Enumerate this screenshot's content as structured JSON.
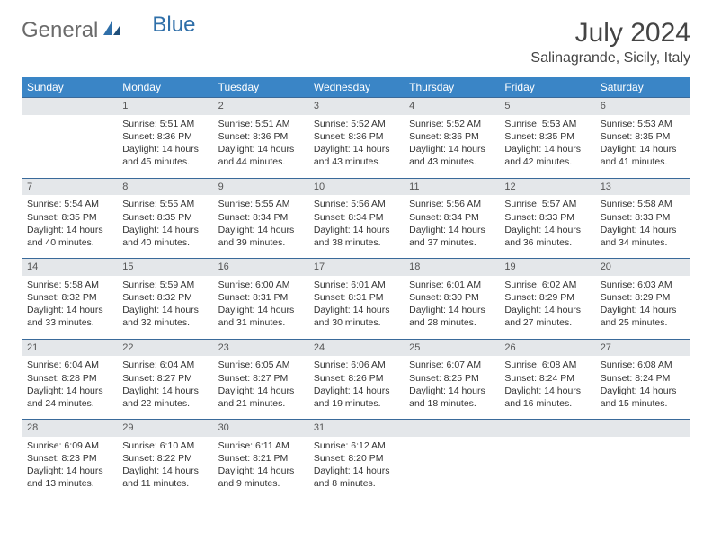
{
  "logo": {
    "general": "General",
    "blue": "Blue"
  },
  "title": "July 2024",
  "location": "Salinagrande, Sicily, Italy",
  "colors": {
    "header_bg": "#3a85c6",
    "header_text": "#ffffff",
    "daynum_bg": "#e4e7ea",
    "row_border": "#3a6a9a",
    "logo_blue": "#2f6fa9",
    "logo_gray": "#6b6b6b"
  },
  "weekdays": [
    "Sunday",
    "Monday",
    "Tuesday",
    "Wednesday",
    "Thursday",
    "Friday",
    "Saturday"
  ],
  "weeks": [
    [
      {
        "day": "",
        "sunrise": "",
        "sunset": "",
        "daylight": ""
      },
      {
        "day": "1",
        "sunrise": "Sunrise: 5:51 AM",
        "sunset": "Sunset: 8:36 PM",
        "daylight": "Daylight: 14 hours and 45 minutes."
      },
      {
        "day": "2",
        "sunrise": "Sunrise: 5:51 AM",
        "sunset": "Sunset: 8:36 PM",
        "daylight": "Daylight: 14 hours and 44 minutes."
      },
      {
        "day": "3",
        "sunrise": "Sunrise: 5:52 AM",
        "sunset": "Sunset: 8:36 PM",
        "daylight": "Daylight: 14 hours and 43 minutes."
      },
      {
        "day": "4",
        "sunrise": "Sunrise: 5:52 AM",
        "sunset": "Sunset: 8:36 PM",
        "daylight": "Daylight: 14 hours and 43 minutes."
      },
      {
        "day": "5",
        "sunrise": "Sunrise: 5:53 AM",
        "sunset": "Sunset: 8:35 PM",
        "daylight": "Daylight: 14 hours and 42 minutes."
      },
      {
        "day": "6",
        "sunrise": "Sunrise: 5:53 AM",
        "sunset": "Sunset: 8:35 PM",
        "daylight": "Daylight: 14 hours and 41 minutes."
      }
    ],
    [
      {
        "day": "7",
        "sunrise": "Sunrise: 5:54 AM",
        "sunset": "Sunset: 8:35 PM",
        "daylight": "Daylight: 14 hours and 40 minutes."
      },
      {
        "day": "8",
        "sunrise": "Sunrise: 5:55 AM",
        "sunset": "Sunset: 8:35 PM",
        "daylight": "Daylight: 14 hours and 40 minutes."
      },
      {
        "day": "9",
        "sunrise": "Sunrise: 5:55 AM",
        "sunset": "Sunset: 8:34 PM",
        "daylight": "Daylight: 14 hours and 39 minutes."
      },
      {
        "day": "10",
        "sunrise": "Sunrise: 5:56 AM",
        "sunset": "Sunset: 8:34 PM",
        "daylight": "Daylight: 14 hours and 38 minutes."
      },
      {
        "day": "11",
        "sunrise": "Sunrise: 5:56 AM",
        "sunset": "Sunset: 8:34 PM",
        "daylight": "Daylight: 14 hours and 37 minutes."
      },
      {
        "day": "12",
        "sunrise": "Sunrise: 5:57 AM",
        "sunset": "Sunset: 8:33 PM",
        "daylight": "Daylight: 14 hours and 36 minutes."
      },
      {
        "day": "13",
        "sunrise": "Sunrise: 5:58 AM",
        "sunset": "Sunset: 8:33 PM",
        "daylight": "Daylight: 14 hours and 34 minutes."
      }
    ],
    [
      {
        "day": "14",
        "sunrise": "Sunrise: 5:58 AM",
        "sunset": "Sunset: 8:32 PM",
        "daylight": "Daylight: 14 hours and 33 minutes."
      },
      {
        "day": "15",
        "sunrise": "Sunrise: 5:59 AM",
        "sunset": "Sunset: 8:32 PM",
        "daylight": "Daylight: 14 hours and 32 minutes."
      },
      {
        "day": "16",
        "sunrise": "Sunrise: 6:00 AM",
        "sunset": "Sunset: 8:31 PM",
        "daylight": "Daylight: 14 hours and 31 minutes."
      },
      {
        "day": "17",
        "sunrise": "Sunrise: 6:01 AM",
        "sunset": "Sunset: 8:31 PM",
        "daylight": "Daylight: 14 hours and 30 minutes."
      },
      {
        "day": "18",
        "sunrise": "Sunrise: 6:01 AM",
        "sunset": "Sunset: 8:30 PM",
        "daylight": "Daylight: 14 hours and 28 minutes."
      },
      {
        "day": "19",
        "sunrise": "Sunrise: 6:02 AM",
        "sunset": "Sunset: 8:29 PM",
        "daylight": "Daylight: 14 hours and 27 minutes."
      },
      {
        "day": "20",
        "sunrise": "Sunrise: 6:03 AM",
        "sunset": "Sunset: 8:29 PM",
        "daylight": "Daylight: 14 hours and 25 minutes."
      }
    ],
    [
      {
        "day": "21",
        "sunrise": "Sunrise: 6:04 AM",
        "sunset": "Sunset: 8:28 PM",
        "daylight": "Daylight: 14 hours and 24 minutes."
      },
      {
        "day": "22",
        "sunrise": "Sunrise: 6:04 AM",
        "sunset": "Sunset: 8:27 PM",
        "daylight": "Daylight: 14 hours and 22 minutes."
      },
      {
        "day": "23",
        "sunrise": "Sunrise: 6:05 AM",
        "sunset": "Sunset: 8:27 PM",
        "daylight": "Daylight: 14 hours and 21 minutes."
      },
      {
        "day": "24",
        "sunrise": "Sunrise: 6:06 AM",
        "sunset": "Sunset: 8:26 PM",
        "daylight": "Daylight: 14 hours and 19 minutes."
      },
      {
        "day": "25",
        "sunrise": "Sunrise: 6:07 AM",
        "sunset": "Sunset: 8:25 PM",
        "daylight": "Daylight: 14 hours and 18 minutes."
      },
      {
        "day": "26",
        "sunrise": "Sunrise: 6:08 AM",
        "sunset": "Sunset: 8:24 PM",
        "daylight": "Daylight: 14 hours and 16 minutes."
      },
      {
        "day": "27",
        "sunrise": "Sunrise: 6:08 AM",
        "sunset": "Sunset: 8:24 PM",
        "daylight": "Daylight: 14 hours and 15 minutes."
      }
    ],
    [
      {
        "day": "28",
        "sunrise": "Sunrise: 6:09 AM",
        "sunset": "Sunset: 8:23 PM",
        "daylight": "Daylight: 14 hours and 13 minutes."
      },
      {
        "day": "29",
        "sunrise": "Sunrise: 6:10 AM",
        "sunset": "Sunset: 8:22 PM",
        "daylight": "Daylight: 14 hours and 11 minutes."
      },
      {
        "day": "30",
        "sunrise": "Sunrise: 6:11 AM",
        "sunset": "Sunset: 8:21 PM",
        "daylight": "Daylight: 14 hours and 9 minutes."
      },
      {
        "day": "31",
        "sunrise": "Sunrise: 6:12 AM",
        "sunset": "Sunset: 8:20 PM",
        "daylight": "Daylight: 14 hours and 8 minutes."
      },
      {
        "day": "",
        "sunrise": "",
        "sunset": "",
        "daylight": ""
      },
      {
        "day": "",
        "sunrise": "",
        "sunset": "",
        "daylight": ""
      },
      {
        "day": "",
        "sunrise": "",
        "sunset": "",
        "daylight": ""
      }
    ]
  ]
}
